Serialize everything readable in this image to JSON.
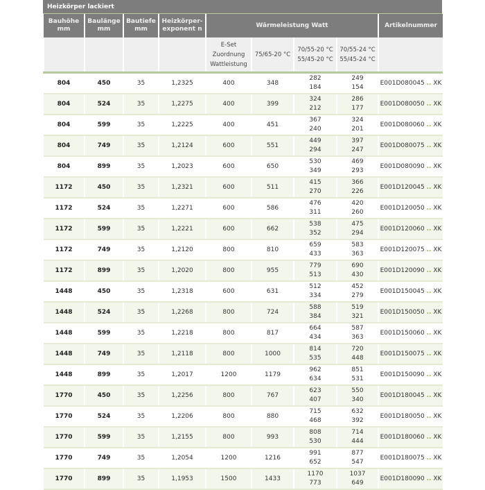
{
  "title": "Heizkörper lackiert",
  "headers": [
    {
      "l1": "Bauhöhe",
      "l2": "mm"
    },
    {
      "l1": "Baulänge",
      "l2": "mm"
    },
    {
      "l1": "Bautiefe",
      "l2": "mm"
    },
    {
      "l1": "Heizkörper-",
      "l2": "exponent n"
    },
    {
      "l1": "Wärmeleistung Watt",
      "l2": ""
    },
    {
      "l1": "Artikelnummer",
      "l2": ""
    }
  ],
  "subheaders": [
    {
      "l1": "E-Set",
      "l2": "Zuordnung",
      "l3": "Wattleistung"
    },
    {
      "l1": "75/65-20 °C",
      "l2": "",
      "l3": ""
    },
    {
      "l1": "70/55-20 °C",
      "l2": "55/45-20 °C",
      "l3": ""
    },
    {
      "l1": "70/55-24 °C",
      "l2": "55/45-24 °C",
      "l3": ""
    }
  ],
  "dots": "..",
  "suffix": "XK",
  "rows": [
    [
      "804",
      "450",
      "35",
      "1,2325",
      "400",
      "348",
      "282",
      "184",
      "249",
      "154",
      "E001D080045"
    ],
    [
      "804",
      "524",
      "35",
      "1,2275",
      "400",
      "399",
      "324",
      "212",
      "286",
      "177",
      "E001D080050"
    ],
    [
      "804",
      "599",
      "35",
      "1,2225",
      "400",
      "451",
      "367",
      "240",
      "324",
      "201",
      "E001D080060"
    ],
    [
      "804",
      "749",
      "35",
      "1,2124",
      "600",
      "551",
      "449",
      "294",
      "397",
      "247",
      "E001D080075"
    ],
    [
      "804",
      "899",
      "35",
      "1,2023",
      "600",
      "650",
      "530",
      "349",
      "469",
      "293",
      "E001D080090"
    ],
    [
      "1172",
      "450",
      "35",
      "1,2321",
      "600",
      "511",
      "415",
      "270",
      "366",
      "226",
      "E001D120045"
    ],
    [
      "1172",
      "524",
      "35",
      "1,2271",
      "600",
      "586",
      "476",
      "311",
      "420",
      "260",
      "E001D120050"
    ],
    [
      "1172",
      "599",
      "35",
      "1,2221",
      "600",
      "662",
      "538",
      "352",
      "475",
      "294",
      "E001D120060"
    ],
    [
      "1172",
      "749",
      "35",
      "1,2120",
      "800",
      "810",
      "659",
      "433",
      "583",
      "363",
      "E001D120075"
    ],
    [
      "1172",
      "899",
      "35",
      "1,2020",
      "800",
      "955",
      "779",
      "513",
      "690",
      "430",
      "E001D120090"
    ],
    [
      "1448",
      "450",
      "35",
      "1,2318",
      "600",
      "631",
      "512",
      "334",
      "452",
      "279",
      "E001D150045"
    ],
    [
      "1448",
      "524",
      "35",
      "1,2268",
      "800",
      "724",
      "588",
      "384",
      "519",
      "321",
      "E001D150050"
    ],
    [
      "1448",
      "599",
      "35",
      "1,2218",
      "800",
      "817",
      "664",
      "434",
      "587",
      "363",
      "E001D150060"
    ],
    [
      "1448",
      "749",
      "35",
      "1,2118",
      "800",
      "1000",
      "814",
      "535",
      "720",
      "448",
      "E001D150075"
    ],
    [
      "1448",
      "899",
      "35",
      "1,2017",
      "1200",
      "1179",
      "962",
      "634",
      "851",
      "531",
      "E001D150090"
    ],
    [
      "1770",
      "450",
      "35",
      "1,2256",
      "800",
      "767",
      "623",
      "407",
      "550",
      "340",
      "E001D180045"
    ],
    [
      "1770",
      "524",
      "35",
      "1,2206",
      "800",
      "880",
      "715",
      "468",
      "632",
      "392",
      "E001D180050"
    ],
    [
      "1770",
      "599",
      "35",
      "1,2155",
      "800",
      "993",
      "808",
      "530",
      "714",
      "444",
      "E001D180060"
    ],
    [
      "1770",
      "749",
      "35",
      "1,2054",
      "1200",
      "1216",
      "991",
      "652",
      "877",
      "547",
      "E001D180075"
    ],
    [
      "1770",
      "899",
      "35",
      "1,1953",
      "1500",
      "1433",
      "1170",
      "773",
      "1037",
      "649",
      "E001D180090"
    ]
  ]
}
